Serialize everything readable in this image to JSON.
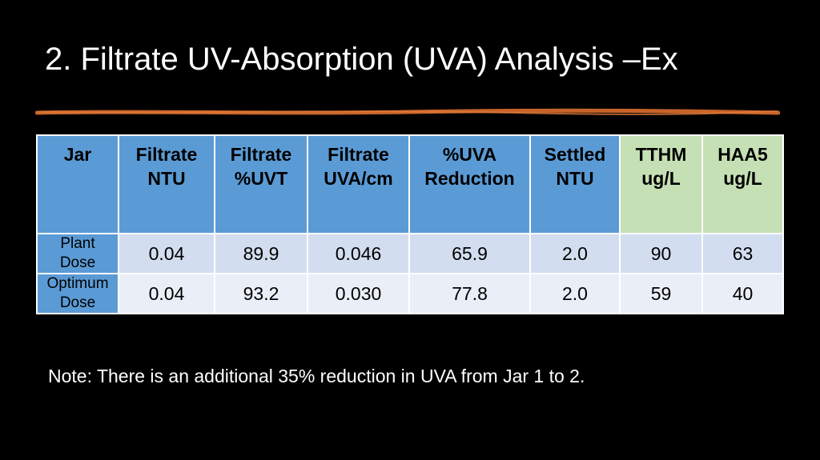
{
  "slide": {
    "title": "2. Filtrate UV-Absorption (UVA) Analysis –Ex",
    "rule_color": "#d2691e",
    "note": "Note: There is an additional 35% reduction in UVA from Jar 1 to 2."
  },
  "table": {
    "header_color": "#5b9bd5",
    "header_green_color": "#c5e0b4",
    "columns": [
      "Jar",
      "Filtrate\nNTU",
      "Filtrate\n%UVT",
      "Filtrate\nUVA/cm",
      "%UVA\nReduction",
      "Settled\nNTU",
      "TTHM\nug/L",
      "HAA5\nug/L"
    ],
    "rows": [
      {
        "label": "Plant\nDose",
        "cells": [
          "0.04",
          "89.9",
          "0.046",
          "65.9",
          "2.0",
          "90",
          "63"
        ]
      },
      {
        "label": "Optimum\nDose",
        "cells": [
          "0.04",
          "93.2",
          "0.030",
          "77.8",
          "2.0",
          "59",
          "40"
        ]
      }
    ]
  }
}
